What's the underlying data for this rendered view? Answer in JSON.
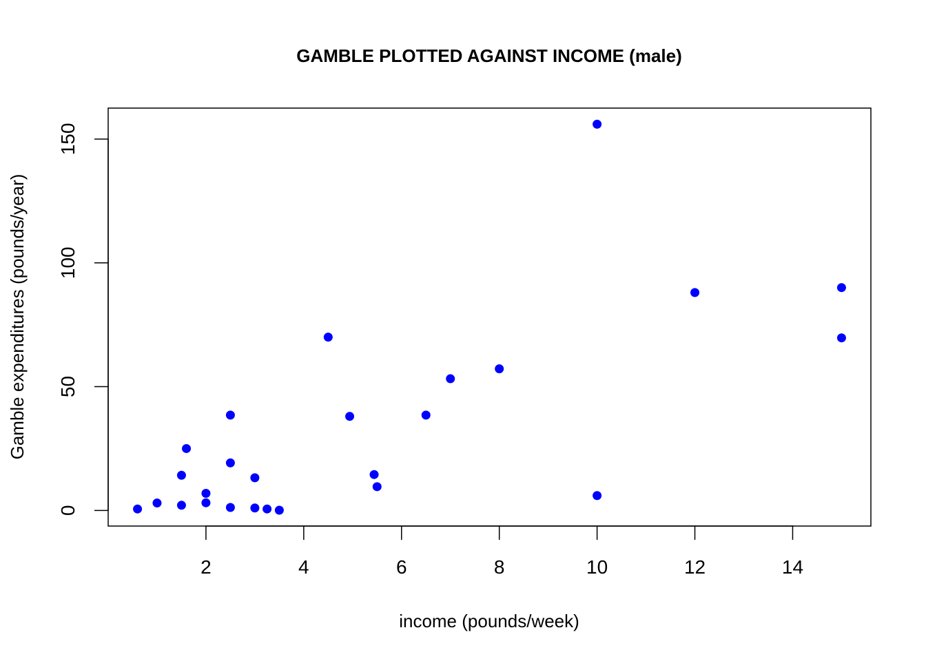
{
  "chart_data": {
    "type": "scatter",
    "title": "GAMBLE PLOTTED AGAINST INCOME (male)",
    "xlabel": "income (pounds/week)",
    "ylabel": "Gamble expenditures (pounds/year)",
    "xlim": [
      0.0,
      15.6
    ],
    "ylim": [
      -6.3,
      162.5
    ],
    "x_ticks": [
      2,
      4,
      6,
      8,
      10,
      12,
      14
    ],
    "y_ticks": [
      0,
      50,
      100,
      150
    ],
    "grid": false,
    "point_color": "#0000ff",
    "points": [
      {
        "x": 0.6,
        "y": 0.6
      },
      {
        "x": 1.0,
        "y": 3.0
      },
      {
        "x": 1.5,
        "y": 2.1
      },
      {
        "x": 1.5,
        "y": 14.2
      },
      {
        "x": 1.6,
        "y": 25.0
      },
      {
        "x": 2.0,
        "y": 3.1
      },
      {
        "x": 2.0,
        "y": 6.9
      },
      {
        "x": 2.5,
        "y": 1.2
      },
      {
        "x": 2.5,
        "y": 19.2
      },
      {
        "x": 2.5,
        "y": 38.5
      },
      {
        "x": 3.0,
        "y": 1.0
      },
      {
        "x": 3.0,
        "y": 13.2
      },
      {
        "x": 3.25,
        "y": 0.6
      },
      {
        "x": 3.5,
        "y": 0.1
      },
      {
        "x": 4.5,
        "y": 70.0
      },
      {
        "x": 4.94,
        "y": 38.0
      },
      {
        "x": 5.44,
        "y": 14.5
      },
      {
        "x": 5.5,
        "y": 9.6
      },
      {
        "x": 6.5,
        "y": 38.5
      },
      {
        "x": 7.0,
        "y": 53.2
      },
      {
        "x": 8.0,
        "y": 57.2
      },
      {
        "x": 10.0,
        "y": 156.0
      },
      {
        "x": 10.0,
        "y": 6.0
      },
      {
        "x": 12.0,
        "y": 88.0
      },
      {
        "x": 15.0,
        "y": 90.0
      },
      {
        "x": 15.0,
        "y": 69.7
      }
    ]
  }
}
